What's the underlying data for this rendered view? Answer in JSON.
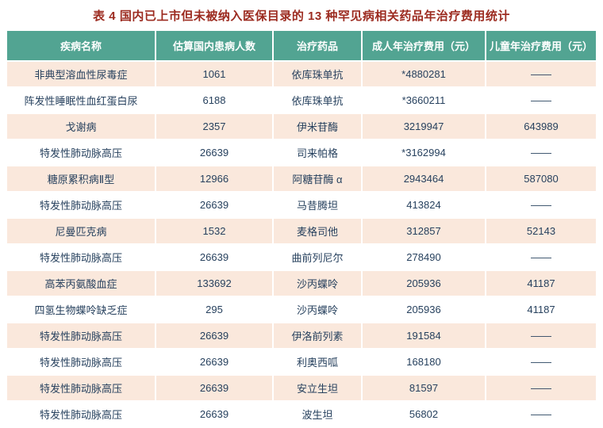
{
  "title": "表 4 国内已上市但未被纳入医保目录的 13 种罕见病相关药品年治疗费用统计",
  "colors": {
    "title_color": "#9c2b20",
    "header_bg": "#52a492",
    "header_text": "#ffffff",
    "body_text": "#27415e",
    "row_alt_bg": "#fae8dc"
  },
  "chart_data": {
    "type": "table",
    "title": "表 4 国内已上市但未被纳入医保目录的 13 种罕见病相关药品年治疗费用统计",
    "columns": [
      "疾病名称",
      "估算国内患病人数",
      "治疗药品",
      "成人年治疗费用（元）",
      "儿童年治疗费用（元）"
    ],
    "rows": [
      [
        "非典型溶血性尿毒症",
        "1061",
        "依库珠单抗",
        "*4880281",
        "——"
      ],
      [
        "阵发性睡眠性血红蛋白尿",
        "6188",
        "依库珠单抗",
        "*3660211",
        "——"
      ],
      [
        "戈谢病",
        "2357",
        "伊米苷酶",
        "3219947",
        "643989"
      ],
      [
        "特发性肺动脉高压",
        "26639",
        "司来帕格",
        "*3162994",
        "——"
      ],
      [
        "糖原累积病Ⅱ型",
        "12966",
        "阿糖苷酶 α",
        "2943464",
        "587080"
      ],
      [
        "特发性肺动脉高压",
        "26639",
        "马昔腾坦",
        "413824",
        "——"
      ],
      [
        "尼曼匹克病",
        "1532",
        "麦格司他",
        "312857",
        "52143"
      ],
      [
        "特发性肺动脉高压",
        "26639",
        "曲前列尼尔",
        "278490",
        "——"
      ],
      [
        "高苯丙氨酸血症",
        "133692",
        "沙丙蝶呤",
        "205936",
        "41187"
      ],
      [
        "四氢生物蝶呤缺乏症",
        "295",
        "沙丙蝶呤",
        "205936",
        "41187"
      ],
      [
        "特发性肺动脉高压",
        "26639",
        "伊洛前列素",
        "191584",
        "——"
      ],
      [
        "特发性肺动脉高压",
        "26639",
        "利奥西呱",
        "168180",
        "——"
      ],
      [
        "特发性肺动脉高压",
        "26639",
        "安立生坦",
        "81597",
        "——"
      ],
      [
        "特发性肺动脉高压",
        "26639",
        "波生坦",
        "56802",
        "——"
      ]
    ]
  }
}
